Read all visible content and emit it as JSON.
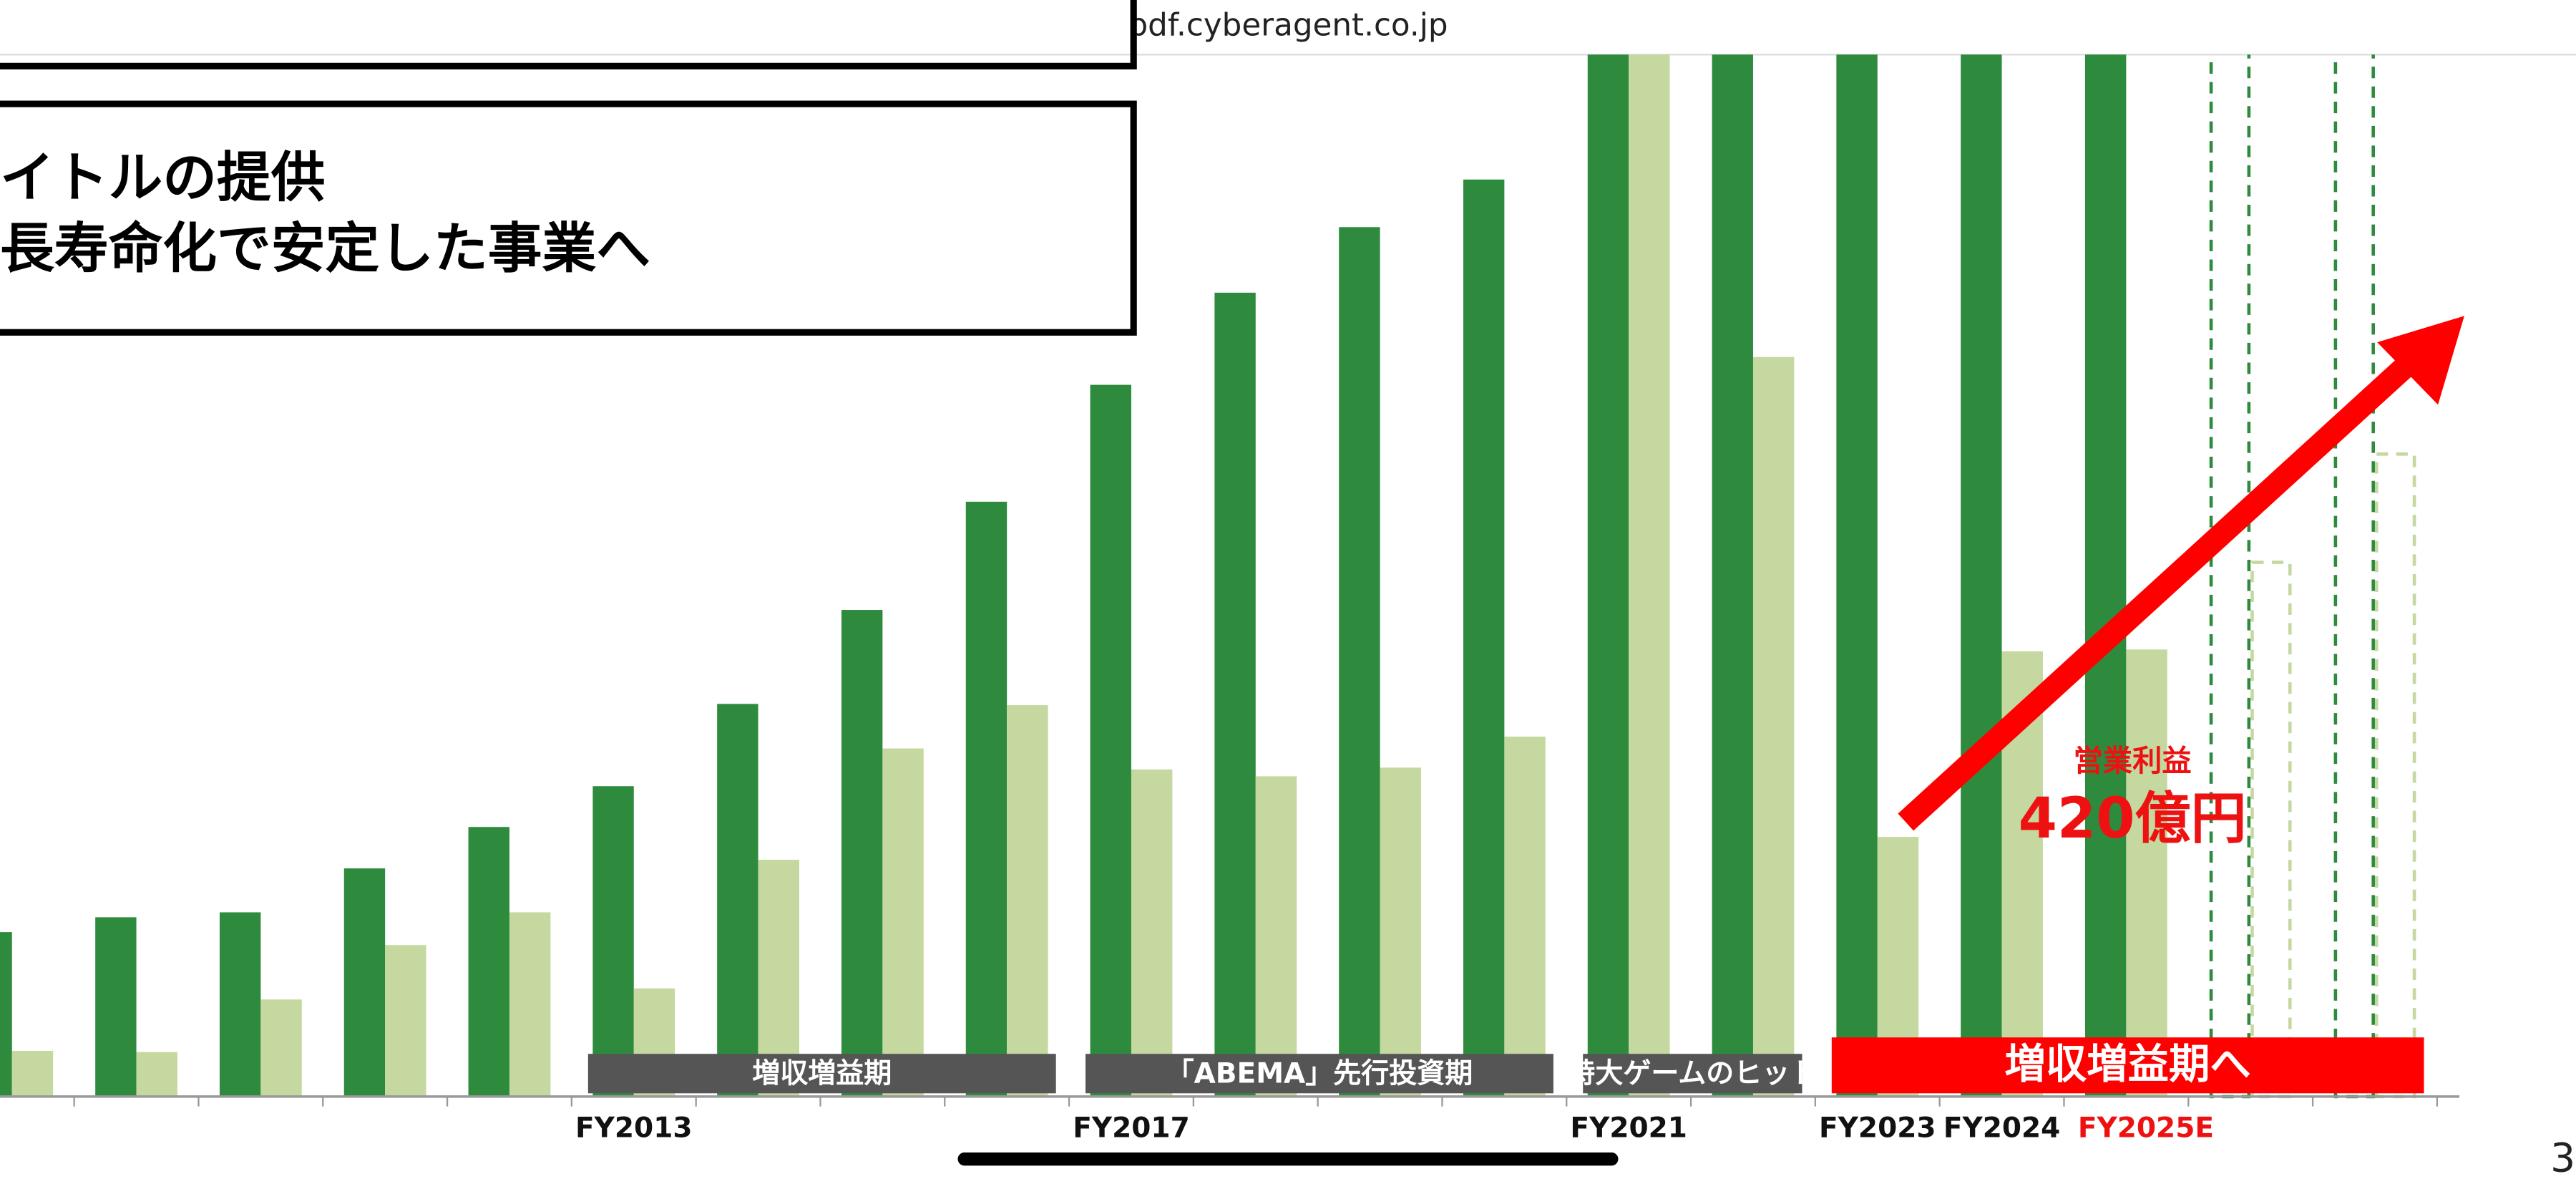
{
  "browser": {
    "url": "pdf.cyberagent.co.jp",
    "page_number": "3"
  },
  "slide": {
    "text_box": [
      "イトルの提供",
      "長寿命化で安定した事業へ"
    ]
  },
  "chart_data": {
    "type": "bar",
    "categories": [
      null,
      null,
      null,
      null,
      null,
      "FY2013",
      null,
      null,
      null,
      "FY2017",
      null,
      null,
      null,
      "FY2021",
      null,
      "FY2023",
      "FY2024",
      "FY2025E",
      null,
      null
    ],
    "series": [
      {
        "color": "#2e8b3e",
        "values": [
          266,
          290,
          298,
          369,
          436,
          502,
          635,
          787,
          962,
          1151,
          1300,
          1406,
          1483,
          1700,
          1700,
          1700,
          1700,
          1700,
          1700,
          1700
        ]
      },
      {
        "color": "#c5d8a0",
        "values": [
          74,
          72,
          157,
          245,
          298,
          175,
          383,
          563,
          633,
          529,
          518,
          532,
          582,
          1700,
          1196,
          420,
          720,
          723,
          864,
          1039
        ],
        "value_labels": [
          null,
          null,
          null,
          null,
          null,
          null,
          null,
          null,
          null,
          null,
          null,
          null,
          null,
          null,
          null,
          "420億円",
          null,
          null,
          null,
          null
        ]
      }
    ],
    "ylim": [
      0,
      1685
    ],
    "dashed_from": 18,
    "highlight_index": 17,
    "highlight_color": "#ee1111",
    "annotation": "営業利益",
    "phases": [
      {
        "label": "増収増益期",
        "start": 5,
        "end": 8,
        "color": "#555555"
      },
      {
        "label": "「ABEMA」先行投資期",
        "start": 9,
        "end": 12,
        "color": "#555555"
      },
      {
        "label": "特大ゲームのヒット",
        "start": 13,
        "end": 14,
        "color": "#555555"
      },
      {
        "label": "増収増益期へ",
        "start": 15,
        "end": 19,
        "color": "#ff0000"
      }
    ]
  }
}
